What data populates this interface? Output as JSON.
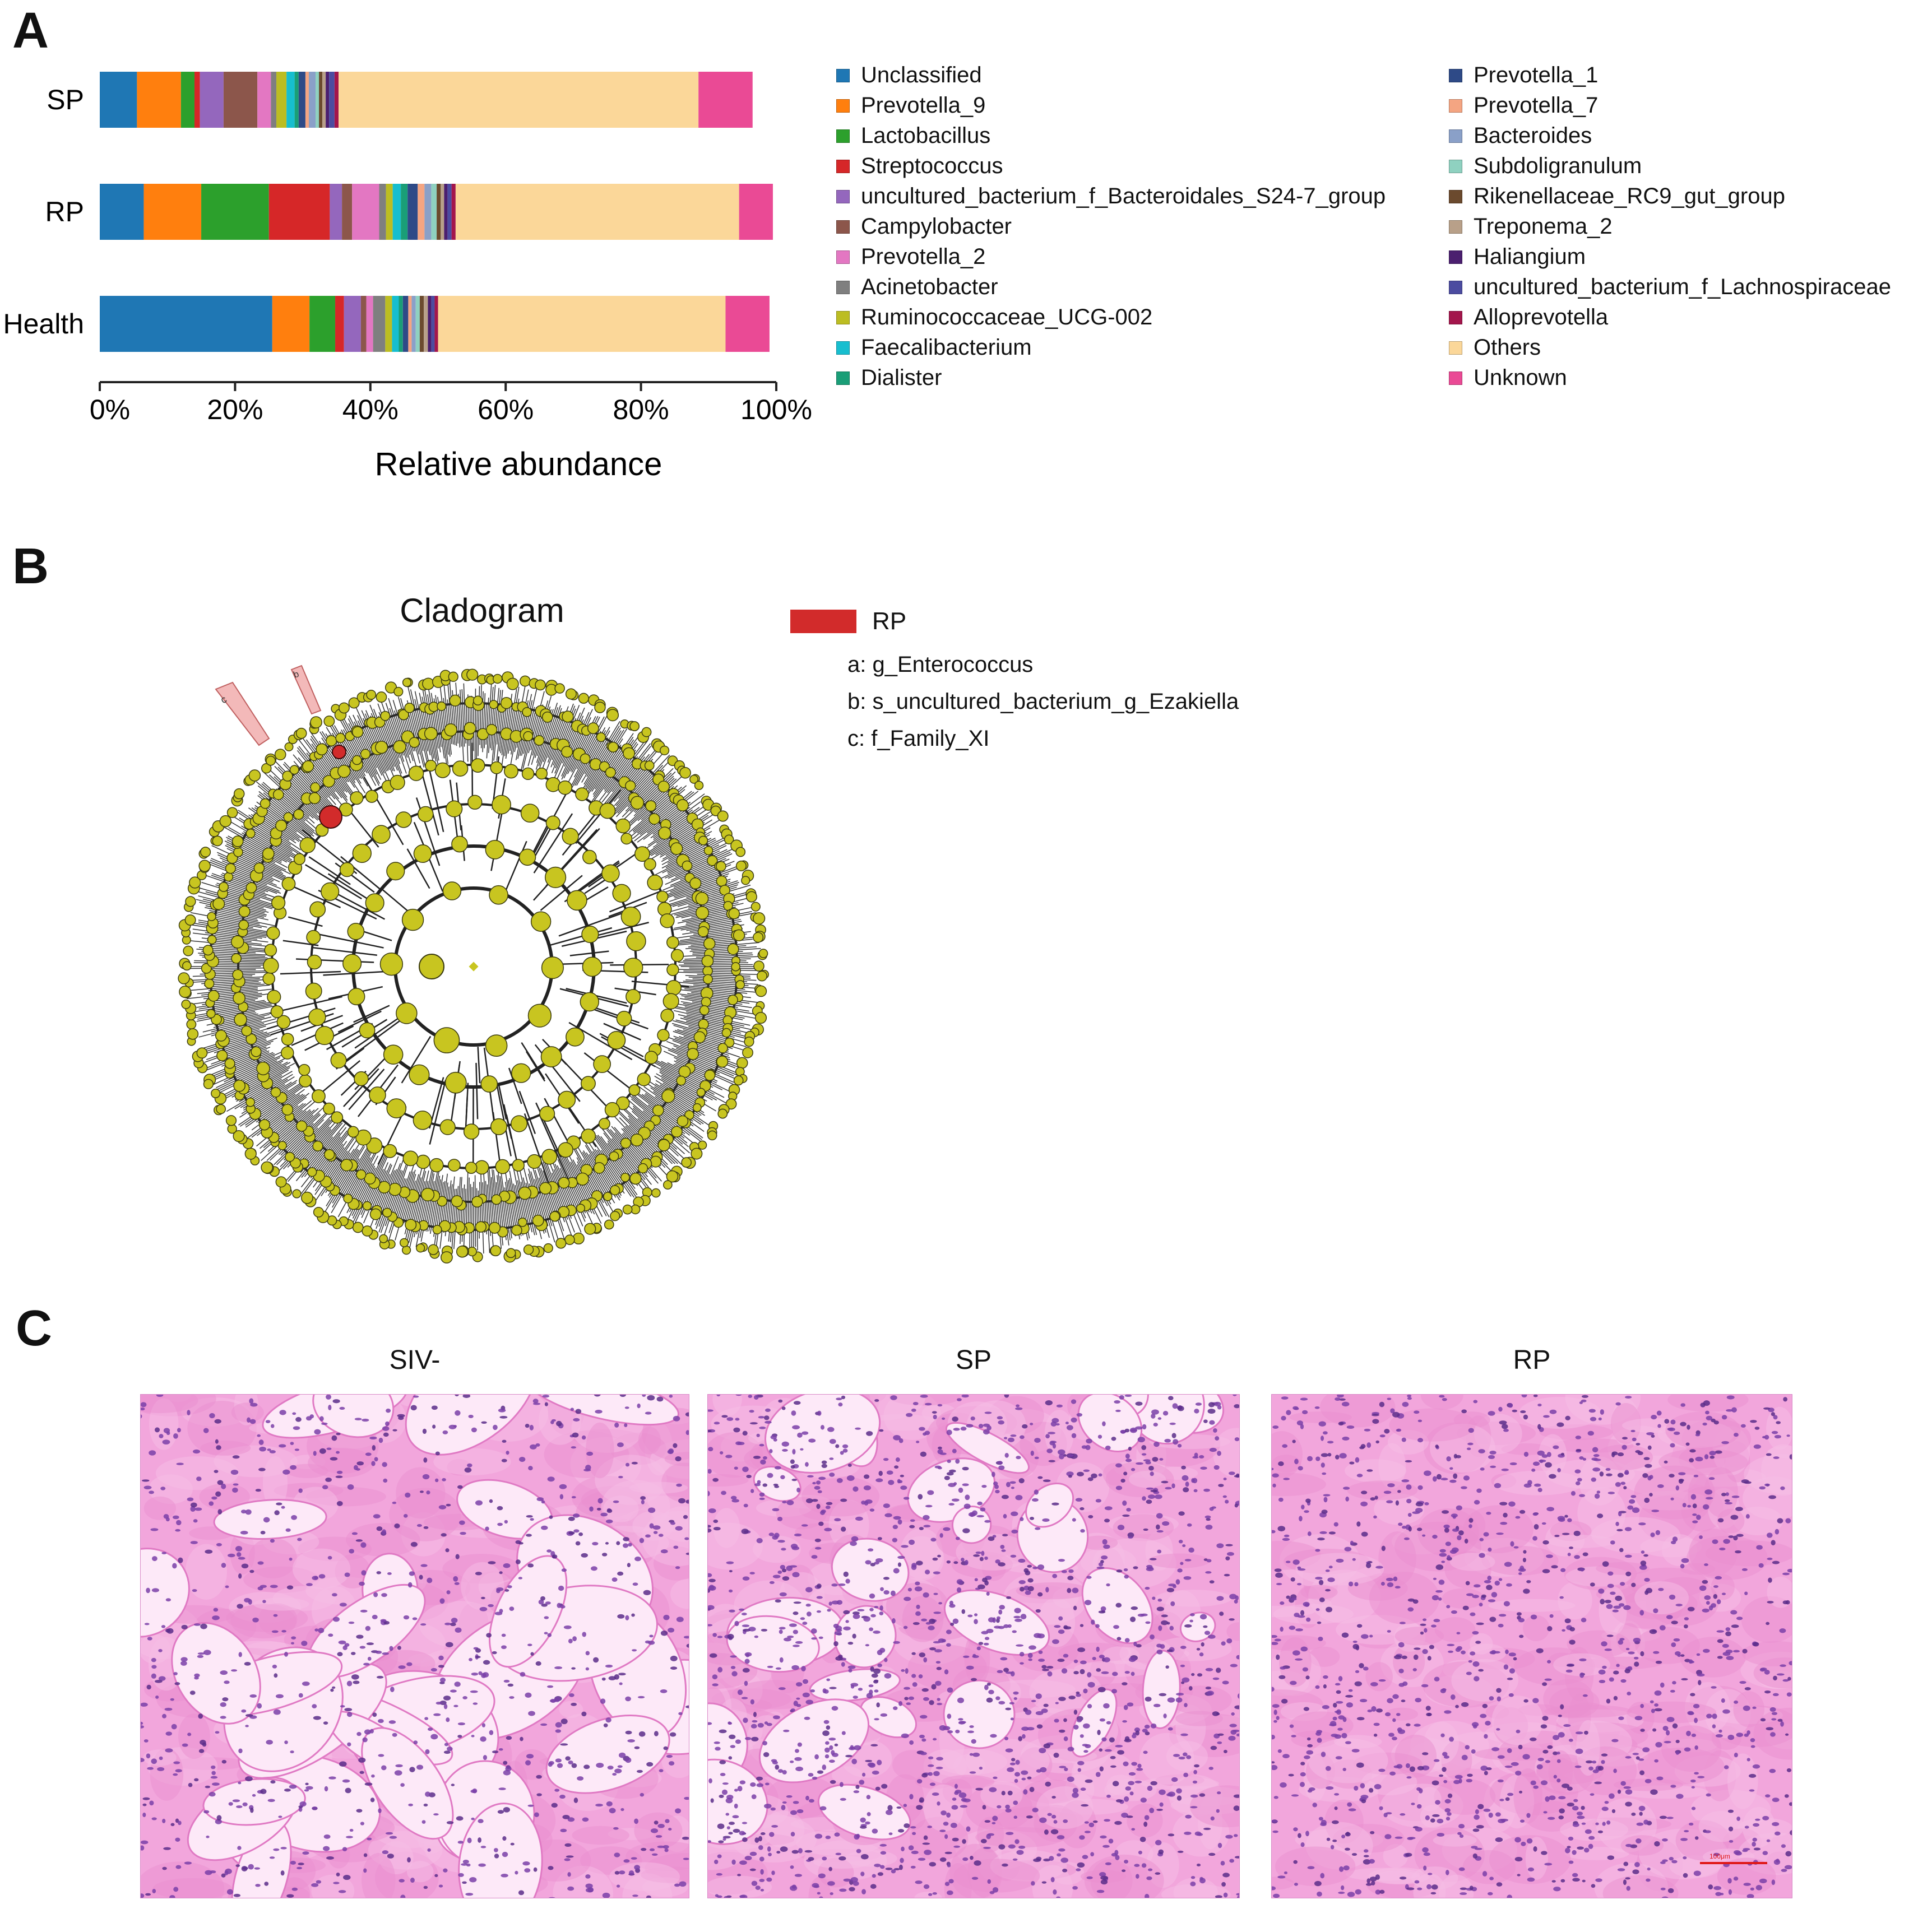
{
  "panels": {
    "a": "A",
    "b": "B",
    "c": "C"
  },
  "chart_data": {
    "type": "bar",
    "orientation": "horizontal",
    "stacked": true,
    "xlabel": "Relative abundance",
    "xlim": [
      0,
      100
    ],
    "xticks": [
      "0%",
      "20%",
      "40%",
      "60%",
      "80%",
      "100%"
    ],
    "categories": [
      "SP",
      "RP",
      "Health"
    ],
    "series": [
      {
        "name": "Unclassified",
        "color": "#1f77b4",
        "values": [
          5.5,
          6.5,
          25.5
        ]
      },
      {
        "name": "Prevotella_9",
        "color": "#ff7f0e",
        "values": [
          6.5,
          8.5,
          5.5
        ]
      },
      {
        "name": "Lactobacillus",
        "color": "#2ca02c",
        "values": [
          2.0,
          10.0,
          3.8
        ]
      },
      {
        "name": "Streptococcus",
        "color": "#d62728",
        "values": [
          0.8,
          9.0,
          1.3
        ]
      },
      {
        "name": "uncultured_bacterium_f_Bacteroidales_S24-7_group",
        "color": "#9467bd",
        "values": [
          3.5,
          1.8,
          2.5
        ]
      },
      {
        "name": "Campylobacter",
        "color": "#8c564b",
        "values": [
          5.0,
          1.5,
          0.8
        ]
      },
      {
        "name": "Prevotella_2",
        "color": "#e377c2",
        "values": [
          2.0,
          4.0,
          1.0
        ]
      },
      {
        "name": "Acinetobacter",
        "color": "#7f7f7f",
        "values": [
          0.8,
          1.0,
          1.8
        ]
      },
      {
        "name": "Ruminococcaceae_UCG-002",
        "color": "#bcbd22",
        "values": [
          1.5,
          1.0,
          1.0
        ]
      },
      {
        "name": "Faecalibacterium",
        "color": "#17becf",
        "values": [
          1.2,
          1.2,
          1.0
        ]
      },
      {
        "name": "Dialister",
        "color": "#1a9e77",
        "values": [
          0.6,
          1.0,
          0.6
        ]
      },
      {
        "name": "Prevotella_1",
        "color": "#2e4a87",
        "values": [
          1.0,
          1.5,
          0.8
        ]
      },
      {
        "name": "Prevotella_7",
        "color": "#f4a582",
        "values": [
          0.5,
          1.0,
          0.5
        ]
      },
      {
        "name": "Bacteroides",
        "color": "#8aa0c8",
        "values": [
          1.0,
          1.0,
          0.6
        ]
      },
      {
        "name": "Subdoligranulum",
        "color": "#8fd1c0",
        "values": [
          0.5,
          0.8,
          0.6
        ]
      },
      {
        "name": "Rikenellaceae_RC9_gut_group",
        "color": "#6b4a2e",
        "values": [
          0.5,
          0.6,
          0.6
        ]
      },
      {
        "name": "Treponema_2",
        "color": "#b8a089",
        "values": [
          0.5,
          0.5,
          0.6
        ]
      },
      {
        "name": "Haliangium",
        "color": "#4b1f6f",
        "values": [
          0.5,
          0.5,
          0.5
        ]
      },
      {
        "name": "uncultured_bacterium_f_Lachnospiraceae",
        "color": "#4c4ca0",
        "values": [
          0.8,
          0.6,
          0.5
        ]
      },
      {
        "name": "Alloprevotella",
        "color": "#a3164c",
        "values": [
          0.6,
          0.6,
          0.5
        ]
      },
      {
        "name": "Others",
        "color": "#fbd799",
        "values": [
          53.2,
          41.9,
          42.5
        ]
      },
      {
        "name": "Unknown",
        "color": "#ea4a95",
        "values": [
          8.0,
          5.0,
          6.5
        ]
      }
    ],
    "legend_placement": "right, two columns"
  },
  "cladogram": {
    "title": "Cladogram",
    "group_label": "RP",
    "group_color": "#d22b2b",
    "node_color": "#c8c520",
    "labels": [
      "a: g_Enterococcus",
      "b: s_uncultured_bacterium_g_Ezakiella",
      "c: f_Family_XI"
    ],
    "sector_letters": [
      "c",
      "b"
    ]
  },
  "micrographs": {
    "titles": [
      "SIV-",
      "SP",
      "RP"
    ],
    "scale_label": "100μm"
  }
}
